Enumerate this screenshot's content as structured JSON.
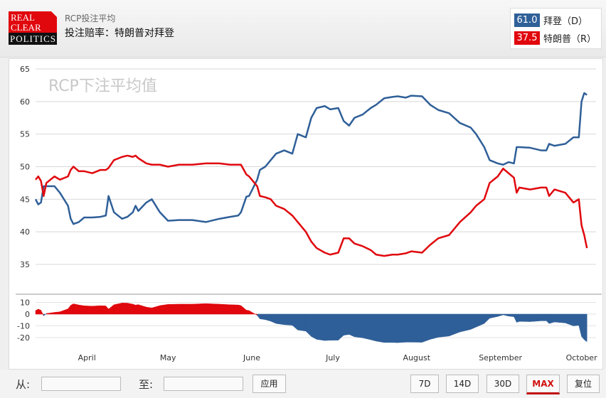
{
  "header": {
    "logo_text": [
      "REAL",
      "CLEAR",
      "POLITICS"
    ],
    "subtitle": "RCP投注平均",
    "title": "投注赔率：特朗普对拜登"
  },
  "legend": [
    {
      "value": "61.0",
      "name": "拜登（D）",
      "color": "#2f5f98"
    },
    {
      "value": "37.5",
      "name": "特朗普（R）",
      "color": "#e0070d"
    }
  ],
  "chart_data": {
    "type": "line",
    "watermark": "RCP下注平均值",
    "ylim": [
      35,
      65
    ],
    "yticks": [
      65,
      60,
      55,
      50,
      45,
      40,
      35
    ],
    "spread_ticks": [
      10,
      0,
      -10,
      -20
    ],
    "xticks": [
      "April",
      "May",
      "June",
      "July",
      "August",
      "September",
      "October"
    ],
    "xtick_dates": [
      "04-01",
      "05-01",
      "06-01",
      "07-01",
      "08-01",
      "09-01",
      "10-01"
    ],
    "grid": true,
    "x": [
      "03-13",
      "03-14",
      "03-15",
      "03-16",
      "03-17",
      "03-20",
      "03-22",
      "03-25",
      "03-26",
      "03-27",
      "03-29",
      "03-31",
      "04-03",
      "04-06",
      "04-08",
      "04-09",
      "04-11",
      "04-14",
      "04-16",
      "04-18",
      "04-19",
      "04-20",
      "04-23",
      "04-25",
      "04-28",
      "05-01",
      "05-05",
      "05-10",
      "05-15",
      "05-20",
      "05-24",
      "05-27",
      "05-28",
      "05-30",
      "05-31",
      "06-03",
      "06-04",
      "06-06",
      "06-08",
      "06-10",
      "06-13",
      "06-16",
      "06-18",
      "06-21",
      "06-23",
      "06-25",
      "06-28",
      "06-30",
      "07-03",
      "07-05",
      "07-07",
      "07-09",
      "07-12",
      "07-15",
      "07-17",
      "07-20",
      "07-23",
      "07-25",
      "07-28",
      "07-30",
      "08-03",
      "08-06",
      "08-09",
      "08-13",
      "08-17",
      "08-21",
      "08-23",
      "08-26",
      "08-28",
      "08-31",
      "09-02",
      "09-04",
      "09-06",
      "09-07",
      "09-08",
      "09-12",
      "09-16",
      "09-18",
      "09-19",
      "09-21",
      "09-25",
      "09-28",
      "09-30",
      "10-01",
      "10-02",
      "10-03"
    ],
    "series": [
      {
        "color": "#2f5f98",
        "values": [
          45,
          44.2,
          44.5,
          47,
          47,
          47,
          46,
          44,
          42,
          41.2,
          41.5,
          42.2,
          42.2,
          42.3,
          42.5,
          45.5,
          43,
          42,
          42.3,
          43,
          44,
          43.2,
          44.5,
          45,
          43,
          41.7,
          41.8,
          41.8,
          41.5,
          42,
          42.3,
          42.5,
          43,
          45.4,
          45.5,
          48,
          49.5,
          50,
          51,
          52,
          52.5,
          52,
          55,
          54.5,
          57.5,
          59,
          59.3,
          58.8,
          59,
          57,
          56.3,
          57.5,
          58,
          59,
          59.5,
          60.5,
          60.7,
          60.8,
          60.6,
          60.9,
          60.8,
          59.5,
          58.7,
          58.2,
          56.7,
          56,
          55,
          53,
          51,
          50.5,
          50.3,
          50.7,
          50.5,
          53,
          53,
          52.9,
          52.5,
          52.5,
          53.5,
          53.2,
          53.5,
          54.5,
          54.5,
          60,
          61.3,
          61
        ]
      },
      {
        "color": "#e0070d",
        "values": [
          48,
          48.5,
          47.8,
          45.5,
          47.5,
          48.5,
          48,
          48.5,
          49.5,
          50,
          49.3,
          49.3,
          49,
          49.5,
          49.5,
          49.8,
          51,
          51.5,
          51.7,
          51.5,
          51.7,
          51.3,
          50.5,
          50.3,
          50.3,
          50,
          50.3,
          50.3,
          50.5,
          50.5,
          50.3,
          50.3,
          50.3,
          48.8,
          48.5,
          47,
          45.5,
          45.3,
          45,
          44,
          43.5,
          42.5,
          41.5,
          40,
          38.5,
          37.5,
          36.8,
          36.5,
          36.8,
          39,
          39,
          38.2,
          37.8,
          37.2,
          36.5,
          36.3,
          36.5,
          36.5,
          36.7,
          37,
          36.8,
          38,
          39,
          39.5,
          41.5,
          43,
          44,
          45,
          47.5,
          48.5,
          49.7,
          49,
          48.3,
          46,
          46.8,
          46.5,
          46.8,
          46.8,
          45.5,
          46.5,
          46,
          44.5,
          45,
          41,
          39.5,
          37.5
        ]
      }
    ]
  },
  "footer": {
    "from_label": "从:",
    "to_label": "至:",
    "from_value": "",
    "to_value": "",
    "apply_label": "应用",
    "ranges": [
      "7D",
      "14D",
      "30D",
      "MAX"
    ],
    "active_range": "MAX",
    "reset_label": "复位"
  }
}
